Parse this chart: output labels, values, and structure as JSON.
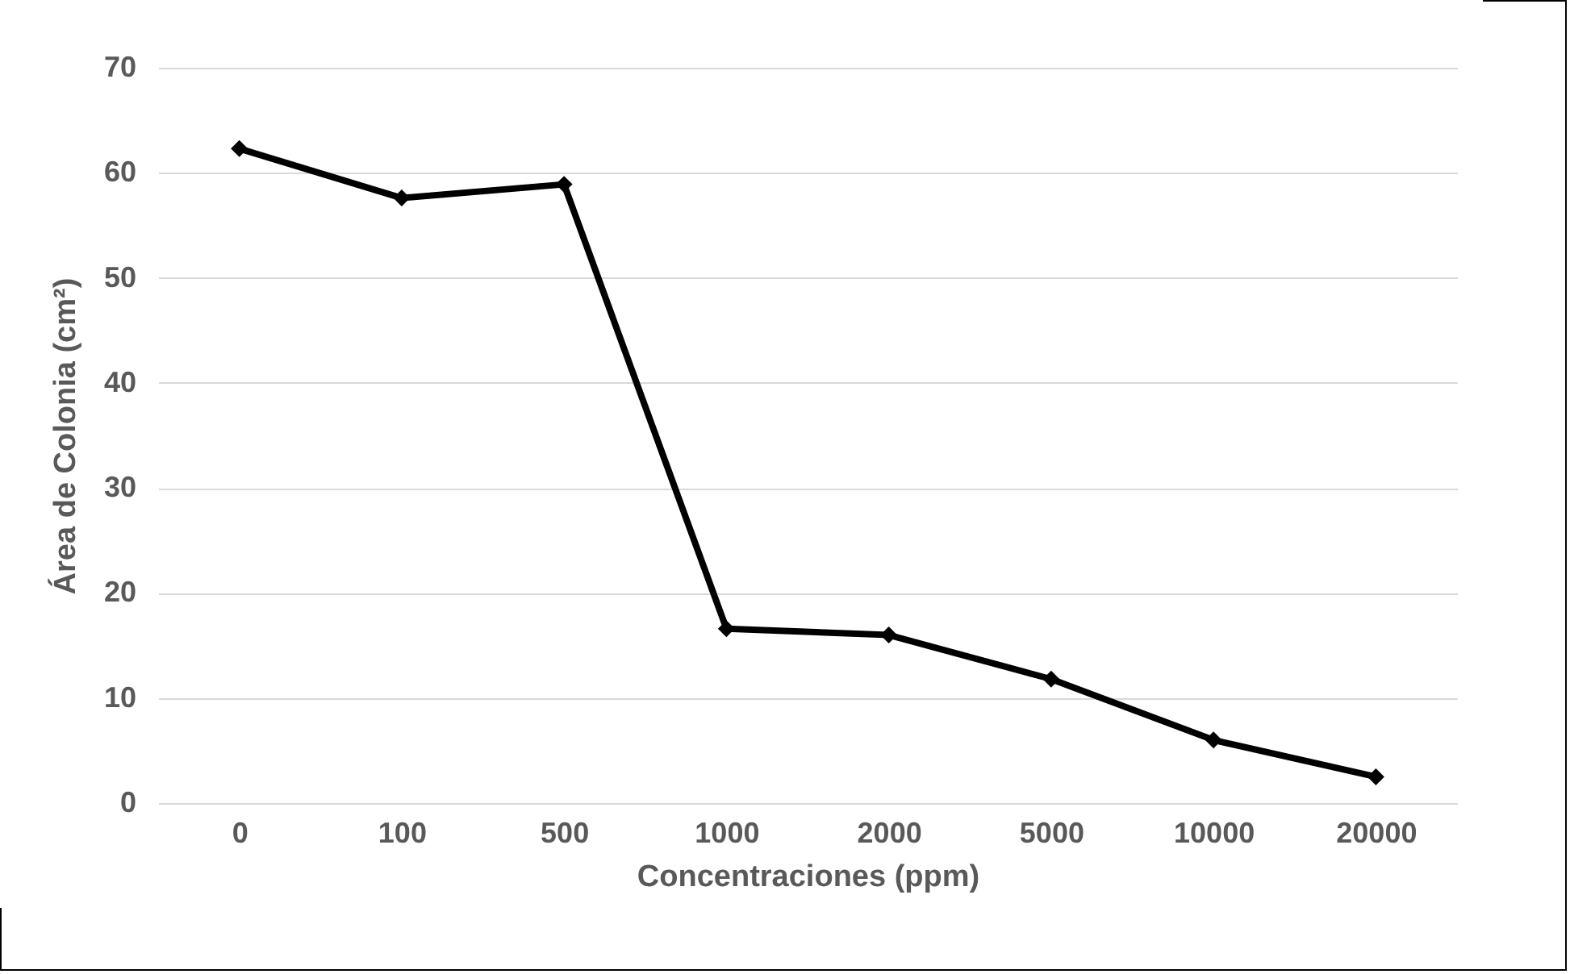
{
  "chart_data": {
    "type": "line",
    "xlabel": "Concentraciones (ppm)",
    "ylabel": "Área  de Colonia (cm²)",
    "categories": [
      "0",
      "100",
      "500",
      "1000",
      "2000",
      "5000",
      "10000",
      "20000"
    ],
    "series": [
      {
        "color": "#000000",
        "values": [
          62.3,
          57.6,
          58.9,
          16.6,
          16.0,
          11.8,
          6.0,
          2.5
        ]
      }
    ],
    "ylim": [
      0,
      70
    ],
    "yticks": [
      0,
      10,
      20,
      30,
      40,
      50,
      60,
      70
    ],
    "grid": "y",
    "marker": "diamond",
    "line_style": "solid",
    "legend": false
  }
}
